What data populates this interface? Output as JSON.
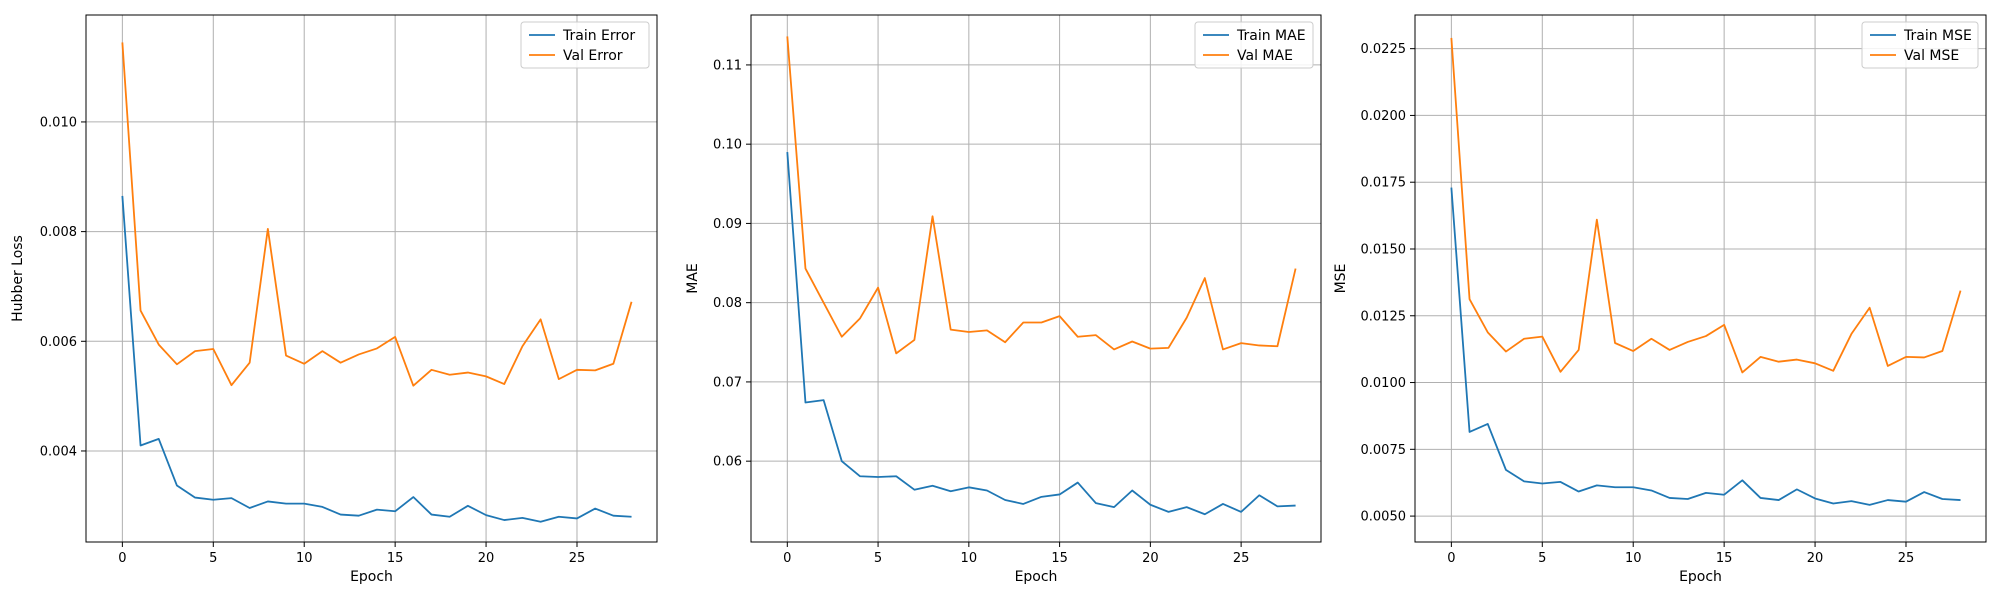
{
  "chart_data": [
    {
      "type": "line",
      "xlabel": "Epoch",
      "ylabel": "Hubber Loss",
      "xlim": [
        -2,
        29.4
      ],
      "ylim": [
        0.00234,
        0.01195
      ],
      "xticks": [
        0,
        5,
        10,
        15,
        20,
        25
      ],
      "yticks": [
        0.004,
        0.006,
        0.008,
        0.01
      ],
      "ytick_labels": [
        "0.004",
        "0.006",
        "0.008",
        "0.010"
      ],
      "grid": true,
      "legend_position": "top-right",
      "x": [
        0,
        1,
        2,
        3,
        4,
        5,
        6,
        7,
        8,
        9,
        10,
        11,
        12,
        13,
        14,
        15,
        16,
        17,
        18,
        19,
        20,
        21,
        22,
        23,
        24,
        25,
        26,
        27,
        28
      ],
      "series": [
        {
          "name": "Train Error",
          "color": "#1f77b4",
          "values": [
            0.00865,
            0.0041,
            0.00422,
            0.00337,
            0.00315,
            0.00311,
            0.00314,
            0.00296,
            0.00308,
            0.00304,
            0.00304,
            0.00298,
            0.00284,
            0.00282,
            0.00293,
            0.0029,
            0.00316,
            0.00284,
            0.0028,
            0.003,
            0.00283,
            0.00274,
            0.00278,
            0.00271,
            0.0028,
            0.00277,
            0.00295,
            0.00282,
            0.0028
          ]
        },
        {
          "name": "Val Error",
          "color": "#ff7f0e",
          "values": [
            0.01145,
            0.00656,
            0.00594,
            0.00558,
            0.00582,
            0.00586,
            0.0052,
            0.00561,
            0.00805,
            0.00574,
            0.00559,
            0.00582,
            0.00561,
            0.00576,
            0.00587,
            0.00608,
            0.00519,
            0.00548,
            0.00539,
            0.00543,
            0.00536,
            0.00522,
            0.00591,
            0.0064,
            0.00531,
            0.00548,
            0.00547,
            0.00559,
            0.00672
          ]
        }
      ]
    },
    {
      "type": "line",
      "xlabel": "Epoch",
      "ylabel": "MAE",
      "xlim": [
        -2,
        29.4
      ],
      "ylim": [
        0.0498,
        0.1163
      ],
      "xticks": [
        0,
        5,
        10,
        15,
        20,
        25
      ],
      "yticks": [
        0.06,
        0.07,
        0.08,
        0.09,
        0.1,
        0.11
      ],
      "ytick_labels": [
        "0.06",
        "0.07",
        "0.08",
        "0.09",
        "0.10",
        "0.11"
      ],
      "grid": true,
      "legend_position": "top-right",
      "x": [
        0,
        1,
        2,
        3,
        4,
        5,
        6,
        7,
        8,
        9,
        10,
        11,
        12,
        13,
        14,
        15,
        16,
        17,
        18,
        19,
        20,
        21,
        22,
        23,
        24,
        25,
        26,
        27,
        28
      ],
      "series": [
        {
          "name": "Train MAE",
          "color": "#1f77b4",
          "values": [
            0.099,
            0.0674,
            0.0677,
            0.06,
            0.0581,
            0.058,
            0.0581,
            0.0564,
            0.0569,
            0.0562,
            0.0567,
            0.0563,
            0.0551,
            0.0546,
            0.0555,
            0.0558,
            0.0573,
            0.0547,
            0.0542,
            0.0563,
            0.0545,
            0.0536,
            0.0542,
            0.0533,
            0.0546,
            0.0536,
            0.0557,
            0.0543,
            0.0544
          ]
        },
        {
          "name": "Val MAE",
          "color": "#ff7f0e",
          "values": [
            0.1136,
            0.0843,
            0.08,
            0.0757,
            0.078,
            0.0819,
            0.0736,
            0.0753,
            0.0909,
            0.0766,
            0.0763,
            0.0765,
            0.075,
            0.0775,
            0.0775,
            0.0783,
            0.0757,
            0.0759,
            0.0741,
            0.0751,
            0.0742,
            0.0743,
            0.0781,
            0.0831,
            0.0741,
            0.0749,
            0.0746,
            0.0745,
            0.0843
          ]
        }
      ]
    },
    {
      "type": "line",
      "xlabel": "Epoch",
      "ylabel": "MSE",
      "xlim": [
        -2,
        29.4
      ],
      "ylim": [
        0.00403,
        0.02376
      ],
      "xticks": [
        0,
        5,
        10,
        15,
        20,
        25
      ],
      "yticks": [
        0.005,
        0.0075,
        0.01,
        0.0125,
        0.015,
        0.0175,
        0.02,
        0.0225
      ],
      "ytick_labels": [
        "0.0050",
        "0.0075",
        "0.0100",
        "0.0125",
        "0.0150",
        "0.0175",
        "0.0200",
        "0.0225"
      ],
      "grid": true,
      "legend_position": "top-right",
      "x": [
        0,
        1,
        2,
        3,
        4,
        5,
        6,
        7,
        8,
        9,
        10,
        11,
        12,
        13,
        14,
        15,
        16,
        17,
        18,
        19,
        20,
        21,
        22,
        23,
        24,
        25,
        26,
        27,
        28
      ],
      "series": [
        {
          "name": "Train MSE",
          "color": "#1f77b4",
          "values": [
            0.0173,
            0.00815,
            0.00845,
            0.00673,
            0.0063,
            0.00622,
            0.00628,
            0.00592,
            0.00615,
            0.00608,
            0.00608,
            0.00596,
            0.00568,
            0.00564,
            0.00587,
            0.0058,
            0.00634,
            0.00568,
            0.0056,
            0.006,
            0.00566,
            0.00547,
            0.00556,
            0.00542,
            0.0056,
            0.00554,
            0.0059,
            0.00564,
            0.0056
          ]
        },
        {
          "name": "Val MSE",
          "color": "#ff7f0e",
          "values": [
            0.0229,
            0.01312,
            0.01188,
            0.01116,
            0.01164,
            0.01172,
            0.0104,
            0.01122,
            0.0161,
            0.01148,
            0.01118,
            0.01164,
            0.01122,
            0.01152,
            0.01174,
            0.01216,
            0.01038,
            0.01096,
            0.01078,
            0.01086,
            0.01072,
            0.01044,
            0.01182,
            0.0128,
            0.01062,
            0.01096,
            0.01094,
            0.01118,
            0.01344
          ]
        }
      ]
    }
  ]
}
